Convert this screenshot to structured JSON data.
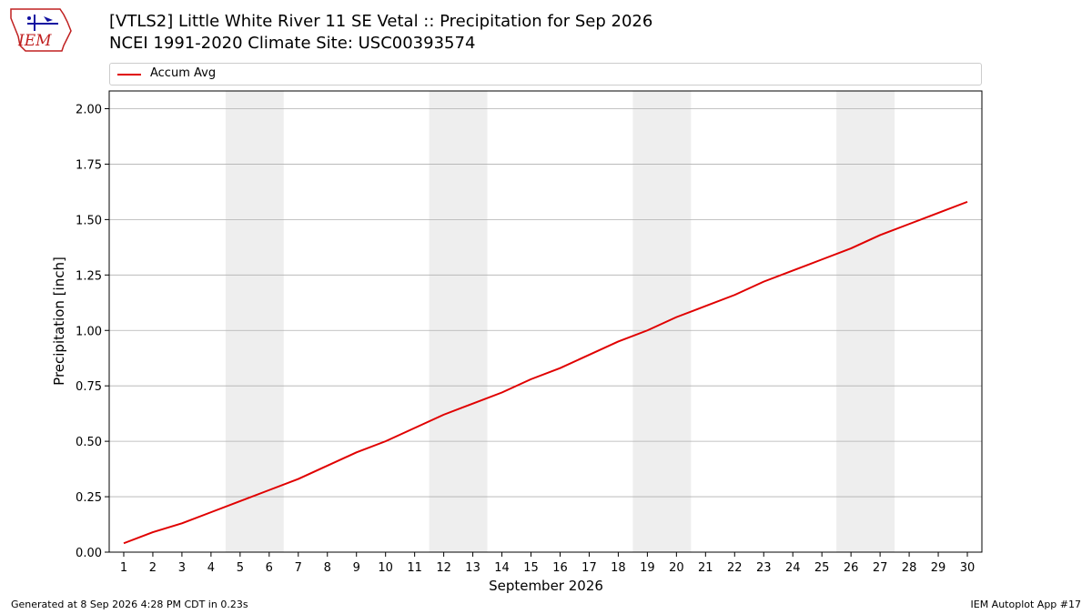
{
  "header": {
    "title": "[VTLS2] Little White River 11 SE Vetal :: Precipitation for Sep 2026",
    "subtitle": "NCEI 1991-2020 Climate Site: USC00393574"
  },
  "logo": {
    "text": "IEM"
  },
  "footer": {
    "left": "Generated at 8 Sep 2026 4:28 PM CDT in 0.23s",
    "right": "IEM Autoplot App #17"
  },
  "colors": {
    "line": "#e00000",
    "weekend_band": "#eeeeee",
    "grid": "#b0b0b0"
  },
  "chart_data": {
    "type": "line",
    "xlabel": "September 2026",
    "ylabel": "Precipitation [inch]",
    "xlim": [
      0.5,
      30.5
    ],
    "ylim": [
      0,
      2.08
    ],
    "y_ticks": [
      0.0,
      0.25,
      0.5,
      0.75,
      1.0,
      1.25,
      1.5,
      1.75,
      2.0
    ],
    "y_tick_labels": [
      "0.00",
      "0.25",
      "0.50",
      "0.75",
      "1.00",
      "1.25",
      "1.50",
      "1.75",
      "2.00"
    ],
    "x": [
      1,
      2,
      3,
      4,
      5,
      6,
      7,
      8,
      9,
      10,
      11,
      12,
      13,
      14,
      15,
      16,
      17,
      18,
      19,
      20,
      21,
      22,
      23,
      24,
      25,
      26,
      27,
      28,
      29,
      30
    ],
    "x_tick_labels": [
      "1",
      "2",
      "3",
      "4",
      "5",
      "6",
      "7",
      "8",
      "9",
      "10",
      "11",
      "12",
      "13",
      "14",
      "15",
      "16",
      "17",
      "18",
      "19",
      "20",
      "21",
      "22",
      "23",
      "24",
      "25",
      "26",
      "27",
      "28",
      "29",
      "30"
    ],
    "shaded_days": [
      [
        5,
        6
      ],
      [
        12,
        13
      ],
      [
        19,
        20
      ],
      [
        26,
        27
      ]
    ],
    "grid": "horizontal",
    "legend": {
      "position": "top",
      "entries": [
        "Accum Avg"
      ]
    },
    "series": [
      {
        "name": "Accum Avg",
        "values": [
          0.04,
          0.09,
          0.13,
          0.18,
          0.23,
          0.28,
          0.33,
          0.39,
          0.45,
          0.5,
          0.56,
          0.62,
          0.67,
          0.72,
          0.78,
          0.83,
          0.89,
          0.95,
          1.0,
          1.06,
          1.11,
          1.16,
          1.22,
          1.27,
          1.32,
          1.37,
          1.43,
          1.48,
          1.53,
          1.58
        ]
      }
    ]
  }
}
